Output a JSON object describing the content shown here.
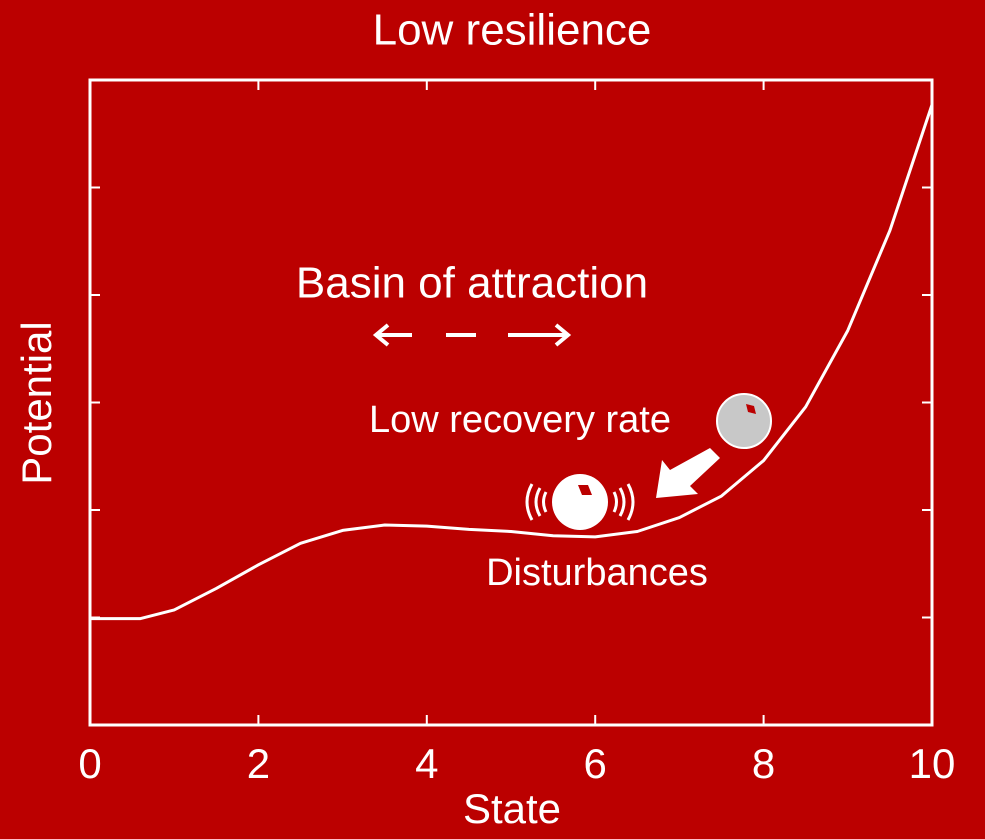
{
  "chart_data": {
    "type": "line",
    "title": "Low resilience",
    "x_label": "State",
    "y_label": "Potential",
    "annotations": [
      "Basin of attraction",
      "Low recovery rate",
      "Disturbances"
    ],
    "x": [
      0,
      0.6,
      1,
      1.5,
      2,
      2.5,
      3,
      3.5,
      4,
      4.5,
      5,
      5.5,
      6,
      6.5,
      7,
      7.5,
      8,
      8.5,
      9,
      9.5,
      10
    ],
    "series": [
      {
        "name": "Potential",
        "color": "#ffffff",
        "values": [
          0.99,
          0.99,
          1.07,
          1.27,
          1.49,
          1.69,
          1.81,
          1.86,
          1.85,
          1.82,
          1.8,
          1.76,
          1.75,
          1.8,
          1.93,
          2.13,
          2.46,
          2.96,
          3.67,
          4.6,
          5.77
        ]
      }
    ],
    "xlim": [
      0,
      10
    ],
    "xticks": [
      0,
      2,
      4,
      6,
      8,
      10
    ],
    "ylim": [
      0,
      6
    ],
    "yticks": [
      1,
      2,
      3,
      4,
      5
    ],
    "grid": false
  }
}
